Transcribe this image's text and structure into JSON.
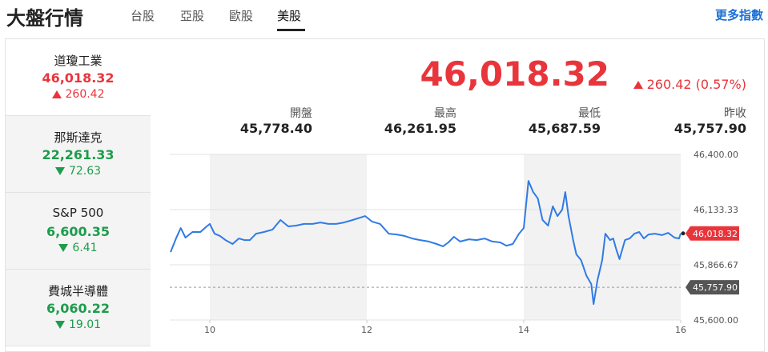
{
  "header": {
    "title": "大盤行情",
    "tabs": [
      "台股",
      "亞股",
      "歐股",
      "美股"
    ],
    "active_tab": 3,
    "more": "更多指數"
  },
  "sidebar": [
    {
      "name": "道瓊工業",
      "value": "46,018.32",
      "change": "260.42",
      "direction": "up",
      "color": "#e8353c",
      "active": true
    },
    {
      "name": "那斯達克",
      "value": "22,261.33",
      "change": "72.63",
      "direction": "down",
      "color": "#1e9c4c",
      "active": false
    },
    {
      "name": "S&P 500",
      "value": "6,600.35",
      "change": "6.41",
      "direction": "down",
      "color": "#1e9c4c",
      "active": false
    },
    {
      "name": "費城半導體",
      "value": "6,060.22",
      "change": "19.01",
      "direction": "down",
      "color": "#1e9c4c",
      "active": false
    }
  ],
  "quote": {
    "price": "46,018.32",
    "change": "260.42 (0.57%)",
    "direction": "up",
    "color": "#e8353c",
    "stats": [
      {
        "label": "開盤",
        "value": "45,778.40"
      },
      {
        "label": "最高",
        "value": "46,261.95"
      },
      {
        "label": "最低",
        "value": "45,687.59"
      },
      {
        "label": "昨收",
        "value": "45,757.90"
      }
    ]
  },
  "chart_data": {
    "type": "line",
    "color": "#2f7be5",
    "x": [
      9.5,
      9.57,
      9.63,
      9.69,
      9.78,
      9.88,
      9.96,
      10.0,
      10.06,
      10.13,
      10.2,
      10.29,
      10.37,
      10.44,
      10.51,
      10.59,
      10.69,
      10.8,
      10.9,
      11.0,
      11.1,
      11.2,
      11.31,
      11.41,
      11.51,
      11.61,
      11.71,
      11.82,
      11.92,
      11.98,
      12.07,
      12.17,
      12.28,
      12.38,
      12.48,
      12.58,
      12.68,
      12.79,
      12.89,
      12.97,
      13.04,
      13.11,
      13.19,
      13.3,
      13.4,
      13.5,
      13.6,
      13.7,
      13.78,
      13.86,
      13.94,
      14.0,
      14.06,
      14.12,
      14.18,
      14.24,
      14.31,
      14.37,
      14.43,
      14.49,
      14.53,
      14.57,
      14.63,
      14.67,
      14.73,
      14.8,
      14.86,
      14.89,
      14.94,
      15.0,
      15.04,
      15.1,
      15.14,
      15.18,
      15.22,
      15.29,
      15.35,
      15.41,
      15.47,
      15.53,
      15.59,
      15.67,
      15.76,
      15.84,
      15.92,
      15.98,
      16.0
    ],
    "values": [
      45928,
      45994,
      46044,
      45998,
      46025,
      46025,
      46052,
      46064,
      46017,
      46006,
      45986,
      45967,
      45994,
      45986,
      45986,
      46017,
      46025,
      46037,
      46083,
      46052,
      46056,
      46064,
      46064,
      46071,
      46064,
      46064,
      46071,
      46083,
      46095,
      46102,
      46075,
      46064,
      46017,
      46013,
      46006,
      45994,
      45986,
      45979,
      45967,
      45956,
      45975,
      46002,
      45979,
      45990,
      45986,
      45994,
      45979,
      45975,
      45959,
      45967,
      46017,
      46044,
      46272,
      46218,
      46187,
      46083,
      46056,
      46149,
      46102,
      46133,
      46218,
      46102,
      45986,
      45917,
      45890,
      45813,
      45774,
      45677,
      45793,
      45890,
      46017,
      45986,
      45994,
      45940,
      45894,
      45986,
      45994,
      46017,
      46025,
      45994,
      46013,
      46017,
      46010,
      46021,
      45998,
      45994,
      46018.32
    ],
    "xlim": [
      9.49,
      16
    ],
    "xticks": [
      10,
      12,
      14,
      16
    ],
    "ylim": [
      45600,
      46400
    ],
    "yticks": [
      {
        "value": 45600,
        "label": "45,600.00"
      },
      {
        "value": 45866.67,
        "label": "45,866.67"
      },
      {
        "value": 46133.33,
        "label": "46,133.33"
      },
      {
        "value": 46400,
        "label": "46,400.00"
      }
    ],
    "shaded": [
      [
        10,
        12
      ],
      [
        14,
        16
      ]
    ],
    "end_label": {
      "value": 46018.32,
      "label": "46,018.32",
      "color": "#e8353c"
    },
    "reference": {
      "value": 45757.9,
      "label": "45,757.90",
      "color": "#555555"
    },
    "grid": true
  }
}
